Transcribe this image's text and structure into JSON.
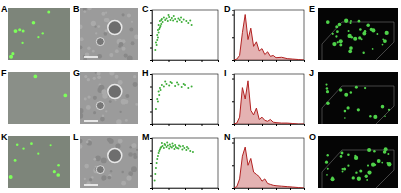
{
  "chart_data": [
    {
      "type": "scatter",
      "title": "C",
      "color": "#3fae3a",
      "marker": "circle",
      "tick_labels": false,
      "x": [
        5,
        6,
        8,
        9,
        10,
        12,
        14,
        15,
        16,
        18,
        20,
        22,
        24,
        26,
        28,
        30,
        32,
        35,
        38,
        40,
        42,
        45,
        48,
        52,
        55,
        58,
        8,
        10,
        12,
        14,
        7,
        9,
        11,
        13,
        60,
        25,
        33,
        44
      ],
      "values": [
        20,
        35,
        50,
        60,
        70,
        78,
        80,
        82,
        76,
        85,
        80,
        83,
        78,
        86,
        80,
        84,
        79,
        82,
        77,
        83,
        80,
        76,
        81,
        78,
        74,
        79,
        40,
        55,
        65,
        72,
        30,
        45,
        62,
        68,
        70,
        90,
        88,
        85
      ],
      "xlim": [
        0,
        100
      ],
      "ylim": [
        0,
        100
      ],
      "xticks": [
        0,
        25,
        50,
        75,
        100
      ],
      "yticks": [
        0,
        25,
        50,
        75,
        100
      ]
    },
    {
      "type": "line",
      "title": "D",
      "color": "#b22222",
      "tick_labels": false,
      "x": [
        0,
        20,
        40,
        60,
        80,
        100,
        120,
        140,
        160,
        180,
        200,
        220,
        240,
        260,
        280,
        300,
        340,
        380,
        420,
        460,
        500
      ],
      "values": [
        0,
        2,
        10,
        60,
        100,
        45,
        70,
        30,
        40,
        20,
        25,
        12,
        18,
        8,
        10,
        5,
        6,
        3,
        2,
        1,
        0
      ],
      "xlim": [
        0,
        500
      ],
      "ylim": [
        0,
        110
      ],
      "xticks": [
        0,
        100,
        200,
        300,
        400,
        500
      ],
      "yticks": [
        0,
        50,
        100
      ]
    },
    {
      "type": "scatter",
      "title": "H",
      "color": "#3fae3a",
      "marker": "circle",
      "tick_labels": false,
      "x": [
        6,
        8,
        10,
        12,
        15,
        18,
        22,
        26,
        30,
        35,
        40,
        45,
        50,
        55,
        60,
        9,
        11,
        13,
        20,
        28,
        38,
        48
      ],
      "values": [
        30,
        50,
        65,
        72,
        78,
        75,
        80,
        77,
        82,
        76,
        79,
        74,
        78,
        72,
        75,
        45,
        58,
        68,
        85,
        84,
        83,
        80
      ],
      "xlim": [
        0,
        100
      ],
      "ylim": [
        0,
        100
      ],
      "xticks": [
        0,
        25,
        50,
        75,
        100
      ],
      "yticks": [
        0,
        25,
        50,
        75,
        100
      ]
    },
    {
      "type": "line",
      "title": "I",
      "color": "#b22222",
      "tick_labels": false,
      "x": [
        0,
        20,
        40,
        60,
        80,
        100,
        120,
        140,
        160,
        180,
        200,
        220,
        240,
        260,
        280,
        300,
        340,
        380,
        420,
        460,
        500
      ],
      "values": [
        0,
        2,
        15,
        80,
        55,
        95,
        30,
        20,
        35,
        10,
        15,
        8,
        6,
        10,
        4,
        3,
        2,
        2,
        1,
        0,
        0
      ],
      "xlim": [
        0,
        500
      ],
      "ylim": [
        0,
        110
      ],
      "xticks": [
        0,
        100,
        200,
        300,
        400,
        500
      ],
      "yticks": [
        0,
        50,
        100
      ]
    },
    {
      "type": "scatter",
      "title": "M",
      "color": "#3fae3a",
      "marker": "circle",
      "tick_labels": false,
      "x": [
        4,
        5,
        6,
        7,
        8,
        9,
        10,
        11,
        12,
        13,
        14,
        16,
        18,
        20,
        22,
        24,
        26,
        28,
        30,
        32,
        34,
        36,
        38,
        40,
        43,
        46,
        49,
        52,
        55,
        58,
        62,
        15,
        19,
        23,
        27,
        31,
        35,
        41,
        47,
        53
      ],
      "values": [
        15,
        28,
        40,
        50,
        58,
        64,
        70,
        74,
        77,
        80,
        82,
        84,
        80,
        86,
        82,
        85,
        79,
        83,
        81,
        84,
        78,
        82,
        80,
        79,
        83,
        77,
        80,
        76,
        79,
        74,
        72,
        90,
        88,
        91,
        87,
        89,
        86,
        85,
        84,
        82
      ],
      "xlim": [
        0,
        100
      ],
      "ylim": [
        0,
        100
      ],
      "xticks": [
        0,
        25,
        50,
        75,
        100
      ],
      "yticks": [
        0,
        25,
        50,
        75,
        100
      ]
    },
    {
      "type": "line",
      "title": "N",
      "color": "#b22222",
      "tick_labels": false,
      "x": [
        0,
        20,
        40,
        60,
        80,
        100,
        120,
        140,
        160,
        180,
        200,
        220,
        240,
        260,
        280,
        300,
        340,
        380,
        420,
        460,
        500
      ],
      "values": [
        0,
        3,
        20,
        70,
        90,
        50,
        65,
        35,
        30,
        25,
        15,
        20,
        10,
        8,
        6,
        5,
        4,
        3,
        2,
        1,
        0
      ],
      "xlim": [
        0,
        500
      ],
      "ylim": [
        0,
        110
      ],
      "xticks": [
        0,
        100,
        200,
        300,
        400,
        500
      ],
      "yticks": [
        0,
        50,
        100
      ]
    }
  ],
  "images": [
    {
      "label": "A"
    },
    {
      "label": "B"
    },
    {
      "label": "E"
    },
    {
      "label": "F"
    },
    {
      "label": "G"
    },
    {
      "label": "J"
    },
    {
      "label": "K"
    },
    {
      "label": "L"
    },
    {
      "label": "O"
    }
  ]
}
